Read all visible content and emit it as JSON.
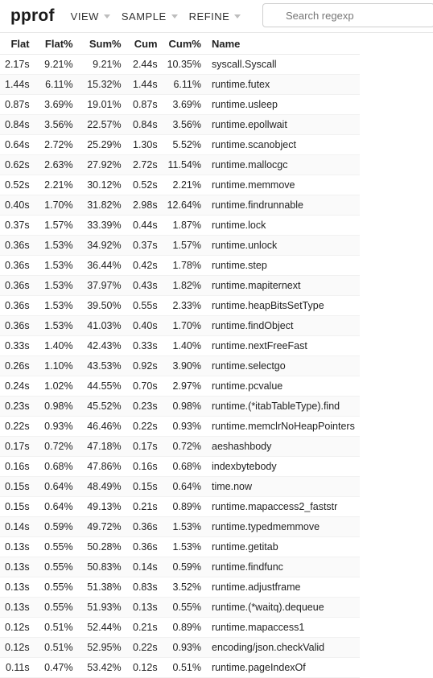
{
  "header": {
    "title": "pprof",
    "menus": [
      "VIEW",
      "SAMPLE",
      "REFINE"
    ],
    "search_placeholder": "Search regexp"
  },
  "table": {
    "columns": [
      "Flat",
      "Flat%",
      "Sum%",
      "Cum",
      "Cum%",
      "Name"
    ],
    "rows": [
      [
        "2.17s",
        "9.21%",
        "9.21%",
        "2.44s",
        "10.35%",
        "syscall.Syscall"
      ],
      [
        "1.44s",
        "6.11%",
        "15.32%",
        "1.44s",
        "6.11%",
        "runtime.futex"
      ],
      [
        "0.87s",
        "3.69%",
        "19.01%",
        "0.87s",
        "3.69%",
        "runtime.usleep"
      ],
      [
        "0.84s",
        "3.56%",
        "22.57%",
        "0.84s",
        "3.56%",
        "runtime.epollwait"
      ],
      [
        "0.64s",
        "2.72%",
        "25.29%",
        "1.30s",
        "5.52%",
        "runtime.scanobject"
      ],
      [
        "0.62s",
        "2.63%",
        "27.92%",
        "2.72s",
        "11.54%",
        "runtime.mallocgc"
      ],
      [
        "0.52s",
        "2.21%",
        "30.12%",
        "0.52s",
        "2.21%",
        "runtime.memmove"
      ],
      [
        "0.40s",
        "1.70%",
        "31.82%",
        "2.98s",
        "12.64%",
        "runtime.findrunnable"
      ],
      [
        "0.37s",
        "1.57%",
        "33.39%",
        "0.44s",
        "1.87%",
        "runtime.lock"
      ],
      [
        "0.36s",
        "1.53%",
        "34.92%",
        "0.37s",
        "1.57%",
        "runtime.unlock"
      ],
      [
        "0.36s",
        "1.53%",
        "36.44%",
        "0.42s",
        "1.78%",
        "runtime.step"
      ],
      [
        "0.36s",
        "1.53%",
        "37.97%",
        "0.43s",
        "1.82%",
        "runtime.mapiternext"
      ],
      [
        "0.36s",
        "1.53%",
        "39.50%",
        "0.55s",
        "2.33%",
        "runtime.heapBitsSetType"
      ],
      [
        "0.36s",
        "1.53%",
        "41.03%",
        "0.40s",
        "1.70%",
        "runtime.findObject"
      ],
      [
        "0.33s",
        "1.40%",
        "42.43%",
        "0.33s",
        "1.40%",
        "runtime.nextFreeFast"
      ],
      [
        "0.26s",
        "1.10%",
        "43.53%",
        "0.92s",
        "3.90%",
        "runtime.selectgo"
      ],
      [
        "0.24s",
        "1.02%",
        "44.55%",
        "0.70s",
        "2.97%",
        "runtime.pcvalue"
      ],
      [
        "0.23s",
        "0.98%",
        "45.52%",
        "0.23s",
        "0.98%",
        "runtime.(*itabTableType).find"
      ],
      [
        "0.22s",
        "0.93%",
        "46.46%",
        "0.22s",
        "0.93%",
        "runtime.memclrNoHeapPointers"
      ],
      [
        "0.17s",
        "0.72%",
        "47.18%",
        "0.17s",
        "0.72%",
        "aeshashbody"
      ],
      [
        "0.16s",
        "0.68%",
        "47.86%",
        "0.16s",
        "0.68%",
        "indexbytebody"
      ],
      [
        "0.15s",
        "0.64%",
        "48.49%",
        "0.15s",
        "0.64%",
        "time.now"
      ],
      [
        "0.15s",
        "0.64%",
        "49.13%",
        "0.21s",
        "0.89%",
        "runtime.mapaccess2_faststr"
      ],
      [
        "0.14s",
        "0.59%",
        "49.72%",
        "0.36s",
        "1.53%",
        "runtime.typedmemmove"
      ],
      [
        "0.13s",
        "0.55%",
        "50.28%",
        "0.36s",
        "1.53%",
        "runtime.getitab"
      ],
      [
        "0.13s",
        "0.55%",
        "50.83%",
        "0.14s",
        "0.59%",
        "runtime.findfunc"
      ],
      [
        "0.13s",
        "0.55%",
        "51.38%",
        "0.83s",
        "3.52%",
        "runtime.adjustframe"
      ],
      [
        "0.13s",
        "0.55%",
        "51.93%",
        "0.13s",
        "0.55%",
        "runtime.(*waitq).dequeue"
      ],
      [
        "0.12s",
        "0.51%",
        "52.44%",
        "0.21s",
        "0.89%",
        "runtime.mapaccess1"
      ],
      [
        "0.12s",
        "0.51%",
        "52.95%",
        "0.22s",
        "0.93%",
        "encoding/json.checkValid"
      ],
      [
        "0.11s",
        "0.47%",
        "53.42%",
        "0.12s",
        "0.51%",
        "runtime.pageIndexOf"
      ]
    ]
  }
}
